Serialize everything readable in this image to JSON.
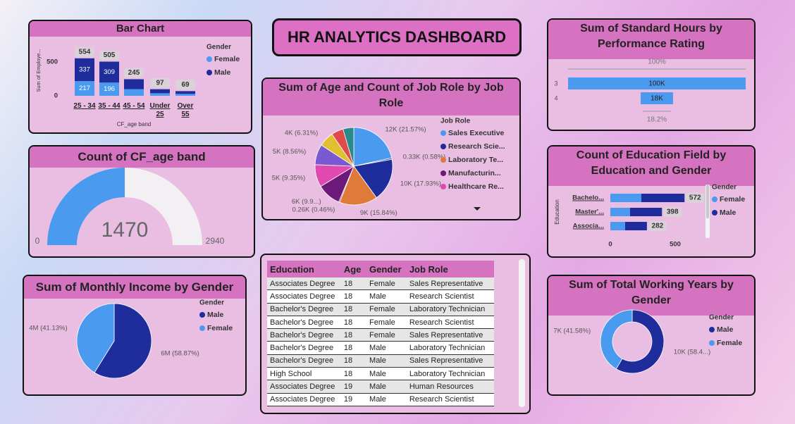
{
  "title": "HR ANALYTICS DASHBOARD",
  "chart_data": [
    {
      "type": "bar",
      "stacked": true,
      "title": "Bar Chart",
      "y_label": "Sum of Employe...",
      "x_label": "CF_age band",
      "categories": [
        "25 - 34",
        "35 - 44",
        "45 - 54",
        "Under 25",
        "Over 55"
      ],
      "legend_title": "Gender",
      "series": [
        {
          "name": "Female",
          "color": "#4a9af0",
          "values": [
            217,
            196,
            98,
            38,
            28
          ]
        },
        {
          "name": "Male",
          "color": "#1f2d9c",
          "values": [
            337,
            309,
            147,
            59,
            41
          ]
        }
      ],
      "totals": [
        554,
        505,
        245,
        97,
        69
      ],
      "ylim": [
        0,
        600
      ],
      "yticks": [
        0,
        500
      ]
    },
    {
      "type": "gauge",
      "title": "Count of CF_age band",
      "value": 1470,
      "min": 0,
      "max": 2940,
      "color": "#4a9af0"
    },
    {
      "type": "pie",
      "title": "Sum of Monthly Income by Gender",
      "legend_title": "Gender",
      "categories": [
        "Male",
        "Female"
      ],
      "values": [
        58.87,
        41.13
      ],
      "value_labels": [
        "6M (58.87%)",
        "4M (41.13%)"
      ],
      "colors": [
        "#1f2d9c",
        "#4a9af0"
      ]
    },
    {
      "type": "pie",
      "title": "Sum of Age and Count of Job Role by Job Role",
      "legend_title": "Job Role",
      "categories": [
        "Sales Executive",
        null,
        "Research Scie...",
        "Laboratory Te...",
        null,
        "Manufacturin...",
        "Healthcare Re...",
        null,
        null,
        null,
        null
      ],
      "values": [
        21.57,
        0.58,
        17.93,
        15.84,
        0.46,
        9.9,
        9.35,
        8.56,
        6.31,
        5.0,
        4.5
      ],
      "value_labels": [
        "12K (21.57%)",
        "0.33K (0.58%)",
        "10K (17.93%)",
        "9K (15.84%)",
        "0.26K (0.46%)",
        "6K (9.9...)",
        "5K (9.35%)",
        "5K (8.56%)",
        "4K (6.31%)",
        null,
        null
      ],
      "colors": [
        "#4a9af0",
        "#2b3fb0",
        "#1f2d9c",
        "#e07a3a",
        "#8a2a6a",
        "#6b1a7a",
        "#e04ab0",
        "#7a5ad0",
        "#e0c030",
        "#e04a4a",
        "#2a8a8a"
      ]
    },
    {
      "type": "funnel",
      "title": "Sum of Standard Hours by Performance Rating",
      "categories": [
        "3",
        "4"
      ],
      "values": [
        100000,
        18200
      ],
      "value_labels": [
        "100K",
        "18K"
      ],
      "percent_labels": [
        "100%",
        "18.2%"
      ],
      "color": "#4a9af0"
    },
    {
      "type": "hbar",
      "stacked": true,
      "title": "Count of Education Field by Education and Gender",
      "y_label": "Education",
      "categories": [
        "Bachelo...",
        "Master'...",
        "Associa..."
      ],
      "legend_title": "Gender",
      "series": [
        {
          "name": "Female",
          "color": "#4a9af0",
          "values": [
            239,
            152,
            114
          ]
        },
        {
          "name": "Male",
          "color": "#1f2d9c",
          "values": [
            333,
            246,
            168
          ]
        }
      ],
      "totals": [
        572,
        398,
        282
      ],
      "xlim": [
        0,
        600
      ],
      "xticks": [
        0,
        500
      ]
    },
    {
      "type": "donut",
      "title": "Sum of Total Working Years by Gender",
      "legend_title": "Gender",
      "categories": [
        "Male",
        "Female"
      ],
      "values": [
        58.42,
        41.58
      ],
      "value_labels": [
        "10K (58.4...)",
        "7K (41.58%)"
      ],
      "colors": [
        "#1f2d9c",
        "#4a9af0"
      ]
    }
  ],
  "table": {
    "columns": [
      "Education",
      "Age",
      "Gender",
      "Job Role"
    ],
    "rows": [
      [
        "Associates Degree",
        18,
        "Female",
        "Sales Representative"
      ],
      [
        "Associates Degree",
        18,
        "Male",
        "Research Scientist"
      ],
      [
        "Bachelor's Degree",
        18,
        "Female",
        "Laboratory Technician"
      ],
      [
        "Bachelor's Degree",
        18,
        "Female",
        "Research Scientist"
      ],
      [
        "Bachelor's Degree",
        18,
        "Female",
        "Sales Representative"
      ],
      [
        "Bachelor's Degree",
        18,
        "Male",
        "Laboratory Technician"
      ],
      [
        "Bachelor's Degree",
        18,
        "Male",
        "Sales Representative"
      ],
      [
        "High School",
        18,
        "Male",
        "Laboratory Technician"
      ],
      [
        "Associates Degree",
        19,
        "Male",
        "Human Resources"
      ],
      [
        "Associates Degree",
        19,
        "Male",
        "Research Scientist"
      ]
    ]
  }
}
